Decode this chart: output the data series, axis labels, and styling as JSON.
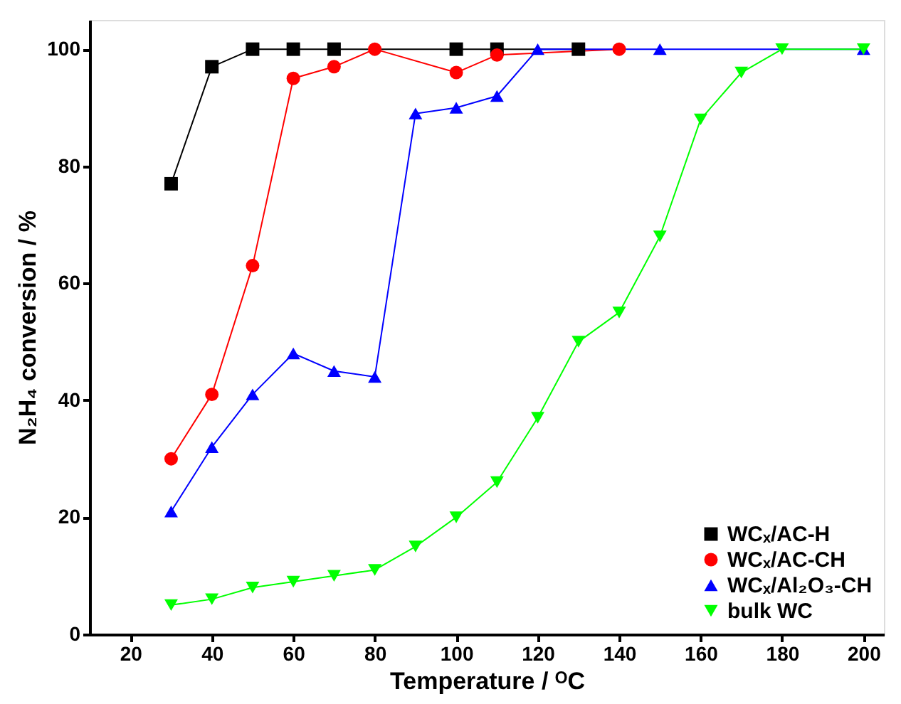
{
  "chart_data": {
    "type": "line",
    "xlabel": "Temperature / ᴼC",
    "ylabel": "N₂H₄ conversion / %",
    "xlim": [
      10,
      205
    ],
    "ylim": [
      0,
      105
    ],
    "xticks": [
      20,
      40,
      60,
      80,
      100,
      120,
      140,
      160,
      180,
      200
    ],
    "yticks": [
      0,
      20,
      40,
      60,
      80,
      100
    ],
    "grid": false,
    "legend": "bottom right",
    "line_style": "solid",
    "series": [
      {
        "name": "WCₓ/AC-H",
        "color": "#000000",
        "marker": "square",
        "x": [
          30,
          40,
          50,
          60,
          70,
          100,
          110,
          130
        ],
        "values": [
          77,
          97,
          100,
          100,
          100,
          100,
          100,
          100
        ]
      },
      {
        "name": "WCₓ/AC-CH",
        "color": "#ff0000",
        "marker": "circle",
        "x": [
          30,
          40,
          50,
          60,
          70,
          80,
          100,
          110,
          140
        ],
        "values": [
          30,
          41,
          63,
          95,
          97,
          100,
          96,
          99,
          100
        ]
      },
      {
        "name": "WCₓ/Al₂O₃-CH",
        "color": "#0000ff",
        "marker": "triangle",
        "x": [
          30,
          40,
          50,
          60,
          70,
          80,
          90,
          100,
          110,
          120,
          150,
          200
        ],
        "values": [
          21,
          32,
          41,
          48,
          45,
          44,
          89,
          90,
          92,
          100,
          100,
          100
        ]
      },
      {
        "name": "bulk WC",
        "color": "#00ff00",
        "marker": "triangle-down",
        "x": [
          30,
          40,
          50,
          60,
          70,
          80,
          90,
          100,
          110,
          120,
          130,
          140,
          150,
          160,
          170,
          180,
          200
        ],
        "values": [
          5,
          6,
          8,
          9,
          10,
          11,
          15,
          20,
          26,
          37,
          50,
          55,
          68,
          88,
          96,
          100,
          100
        ]
      }
    ]
  }
}
